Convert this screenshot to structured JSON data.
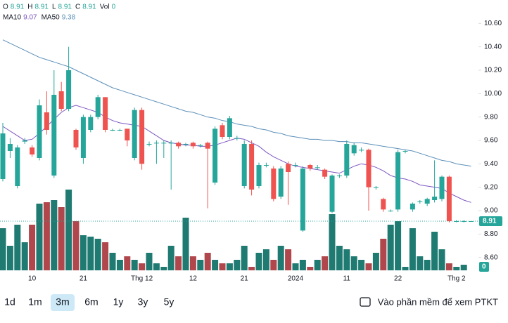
{
  "chart_data": {
    "type": "candlestick",
    "readout_labels": [
      "O",
      "H",
      "L",
      "C",
      "Vol"
    ],
    "categories": [
      null,
      null,
      null,
      null,
      "10",
      null,
      null,
      null,
      null,
      null,
      null,
      "21",
      null,
      null,
      null,
      null,
      null,
      null,
      null,
      "Thg 12",
      null,
      null,
      null,
      null,
      null,
      null,
      "12",
      null,
      null,
      null,
      null,
      null,
      null,
      "21",
      null,
      null,
      null,
      null,
      null,
      null,
      "2024",
      null,
      null,
      null,
      null,
      null,
      null,
      "11",
      null,
      null,
      null,
      null,
      null,
      null,
      "22",
      null,
      null,
      null,
      null,
      null,
      null,
      null,
      "Thg 2",
      null,
      null
    ],
    "open": [
      9.27,
      9.51,
      9.21,
      9.59,
      9.54,
      9.45,
      9.84,
      9.3,
      10.02,
      9.87,
      9.69,
      9.45,
      9.69,
      9.8,
      9.97,
      9.69,
      9.69,
      9.7,
      9.45,
      9.86,
      9.57,
      9.58,
      9.58,
      9.58,
      9.58,
      9.57,
      9.58,
      9.56,
      9.58,
      9.24,
      9.73,
      9.63,
      9.62,
      9.21,
      9.57,
      9.21,
      9.39,
      9.36,
      9.12,
      9.4,
      9.39,
      8.83,
      9.39,
      9.37,
      9.35,
      8.99,
      9.3,
      9.3,
      9.49,
      9.52,
      9.52,
      9.2,
      9.1,
      9.0,
      9.01,
      9.51,
      9.01,
      9.08,
      9.06,
      9.09,
      9.1,
      9.29,
      8.91,
      8.91,
      8.91
    ],
    "high": [
      9.75,
      9.62,
      9.56,
      9.62,
      9.56,
      9.95,
      10.02,
      10.2,
      10.1,
      10.4,
      9.7,
      9.82,
      9.82,
      9.99,
      9.97,
      9.7,
      9.7,
      9.7,
      9.88,
      9.88,
      9.59,
      9.6,
      9.6,
      9.6,
      9.59,
      9.58,
      9.59,
      9.57,
      9.59,
      9.72,
      9.75,
      9.81,
      9.64,
      9.6,
      9.6,
      9.41,
      9.41,
      9.38,
      9.38,
      9.42,
      9.41,
      9.38,
      9.4,
      9.39,
      9.36,
      9.31,
      9.31,
      9.6,
      9.58,
      9.54,
      9.53,
      9.21,
      9.11,
      9.01,
      9.52,
      9.52,
      9.07,
      9.09,
      9.11,
      9.43,
      9.3,
      9.3,
      8.92,
      8.92,
      8.91
    ],
    "low": [
      9.25,
      9.45,
      9.19,
      9.57,
      9.46,
      9.43,
      9.65,
      9.28,
      9.85,
      9.85,
      9.52,
      9.4,
      9.67,
      9.78,
      9.67,
      9.68,
      9.68,
      9.55,
      9.43,
      9.35,
      9.55,
      9.4,
      9.45,
      9.18,
      9.53,
      9.55,
      9.53,
      9.54,
      9.02,
      9.22,
      9.61,
      9.61,
      9.6,
      9.19,
      9.13,
      9.19,
      9.37,
      9.08,
      9.1,
      9.05,
      9.37,
      8.82,
      9.34,
      9.35,
      9.27,
      8.98,
      9.28,
      9.28,
      9.47,
      9.5,
      9.0,
      9.18,
      8.99,
      8.99,
      8.99,
      9.49,
      8.99,
      9.06,
      9.04,
      9.07,
      9.08,
      8.9,
      8.9,
      8.9,
      8.91
    ],
    "close": [
      9.66,
      9.57,
      9.54,
      9.6,
      9.48,
      9.9,
      9.69,
      9.99,
      9.87,
      10.2,
      9.54,
      9.8,
      9.8,
      9.97,
      9.69,
      9.69,
      9.69,
      9.6,
      9.86,
      9.4,
      9.57,
      9.58,
      9.58,
      9.58,
      9.55,
      9.57,
      9.55,
      9.56,
      9.53,
      9.7,
      9.63,
      9.79,
      9.62,
      9.57,
      9.18,
      9.39,
      9.39,
      9.1,
      9.36,
      9.33,
      9.39,
      9.36,
      9.36,
      9.37,
      9.29,
      9.3,
      9.3,
      9.57,
      9.56,
      9.52,
      9.2,
      9.2,
      9.01,
      9.0,
      9.5,
      9.51,
      9.06,
      9.08,
      9.1,
      9.12,
      9.29,
      8.91,
      8.91,
      8.91,
      8.91
    ],
    "volume": [
      60,
      35,
      65,
      40,
      65,
      95,
      97,
      100,
      90,
      115,
      70,
      50,
      48,
      45,
      40,
      25,
      15,
      20,
      15,
      10,
      25,
      10,
      5,
      35,
      20,
      75,
      20,
      15,
      25,
      15,
      10,
      10,
      15,
      35,
      5,
      25,
      30,
      15,
      35,
      30,
      10,
      15,
      5,
      15,
      20,
      80,
      35,
      30,
      20,
      15,
      10,
      25,
      45,
      65,
      70,
      5,
      60,
      20,
      15,
      55,
      30,
      10,
      5,
      8,
      0
    ],
    "up_color": "#26a69a",
    "down_color": "#ef5350",
    "volume_up_color": "#1f7a72",
    "volume_down_color": "#b0474c",
    "series": [
      {
        "name": "MA10",
        "color": "#7e57c2",
        "values": [
          9.72,
          9.68,
          9.64,
          9.6,
          9.61,
          9.66,
          9.72,
          9.78,
          9.84,
          9.88,
          9.9,
          9.88,
          9.86,
          9.84,
          9.8,
          9.77,
          9.75,
          9.74,
          9.73,
          9.72,
          9.68,
          9.64,
          9.6,
          9.58,
          9.57,
          9.56,
          9.56,
          9.55,
          9.55,
          9.56,
          9.58,
          9.6,
          9.62,
          9.61,
          9.58,
          9.55,
          9.5,
          9.46,
          9.43,
          9.4,
          9.38,
          9.37,
          9.36,
          9.35,
          9.34,
          9.33,
          9.32,
          9.35,
          9.38,
          9.4,
          9.39,
          9.37,
          9.34,
          9.3,
          9.28,
          9.27,
          9.25,
          9.22,
          9.21,
          9.2,
          9.19,
          9.15,
          9.12,
          9.09,
          9.07
        ]
      },
      {
        "name": "MA50",
        "color": "#5b8fb9",
        "values": [
          10.46,
          10.43,
          10.4,
          10.37,
          10.34,
          10.31,
          10.29,
          10.27,
          10.25,
          10.23,
          10.2,
          10.17,
          10.14,
          10.11,
          10.08,
          10.05,
          10.03,
          10.01,
          9.99,
          9.97,
          9.95,
          9.93,
          9.91,
          9.89,
          9.87,
          9.85,
          9.84,
          9.82,
          9.8,
          9.79,
          9.77,
          9.76,
          9.74,
          9.73,
          9.72,
          9.7,
          9.69,
          9.67,
          9.66,
          9.64,
          9.63,
          9.62,
          9.61,
          9.61,
          9.6,
          9.6,
          9.59,
          9.59,
          9.58,
          9.58,
          9.57,
          9.56,
          9.55,
          9.54,
          9.53,
          9.52,
          9.51,
          9.49,
          9.47,
          9.45,
          9.43,
          9.42,
          9.4,
          9.39,
          9.38
        ]
      }
    ],
    "ylim": [
      8.46,
      10.8
    ],
    "yticks": [
      {
        "value": 8.6,
        "label": "8.60"
      },
      {
        "value": 8.8,
        "label": "8.80"
      },
      {
        "value": 9.0,
        "label": "9.00"
      },
      {
        "value": 9.2,
        "label": "9.20"
      },
      {
        "value": 9.4,
        "label": "9.40"
      },
      {
        "value": 9.6,
        "label": "9.60"
      },
      {
        "value": 9.8,
        "label": "9.80"
      },
      {
        "value": 10.0,
        "label": "10.00"
      },
      {
        "value": 10.2,
        "label": "10.20"
      },
      {
        "value": 10.4,
        "label": "10.40"
      },
      {
        "value": 10.6,
        "label": "10.60"
      }
    ],
    "volume_ylim": [
      0,
      130
    ]
  },
  "range_buttons": [
    "1d",
    "1m",
    "3m",
    "6m",
    "1y",
    "3y",
    "5y"
  ],
  "selected_range": 2,
  "link_text": "Vào phần mềm để xem PTKT"
}
